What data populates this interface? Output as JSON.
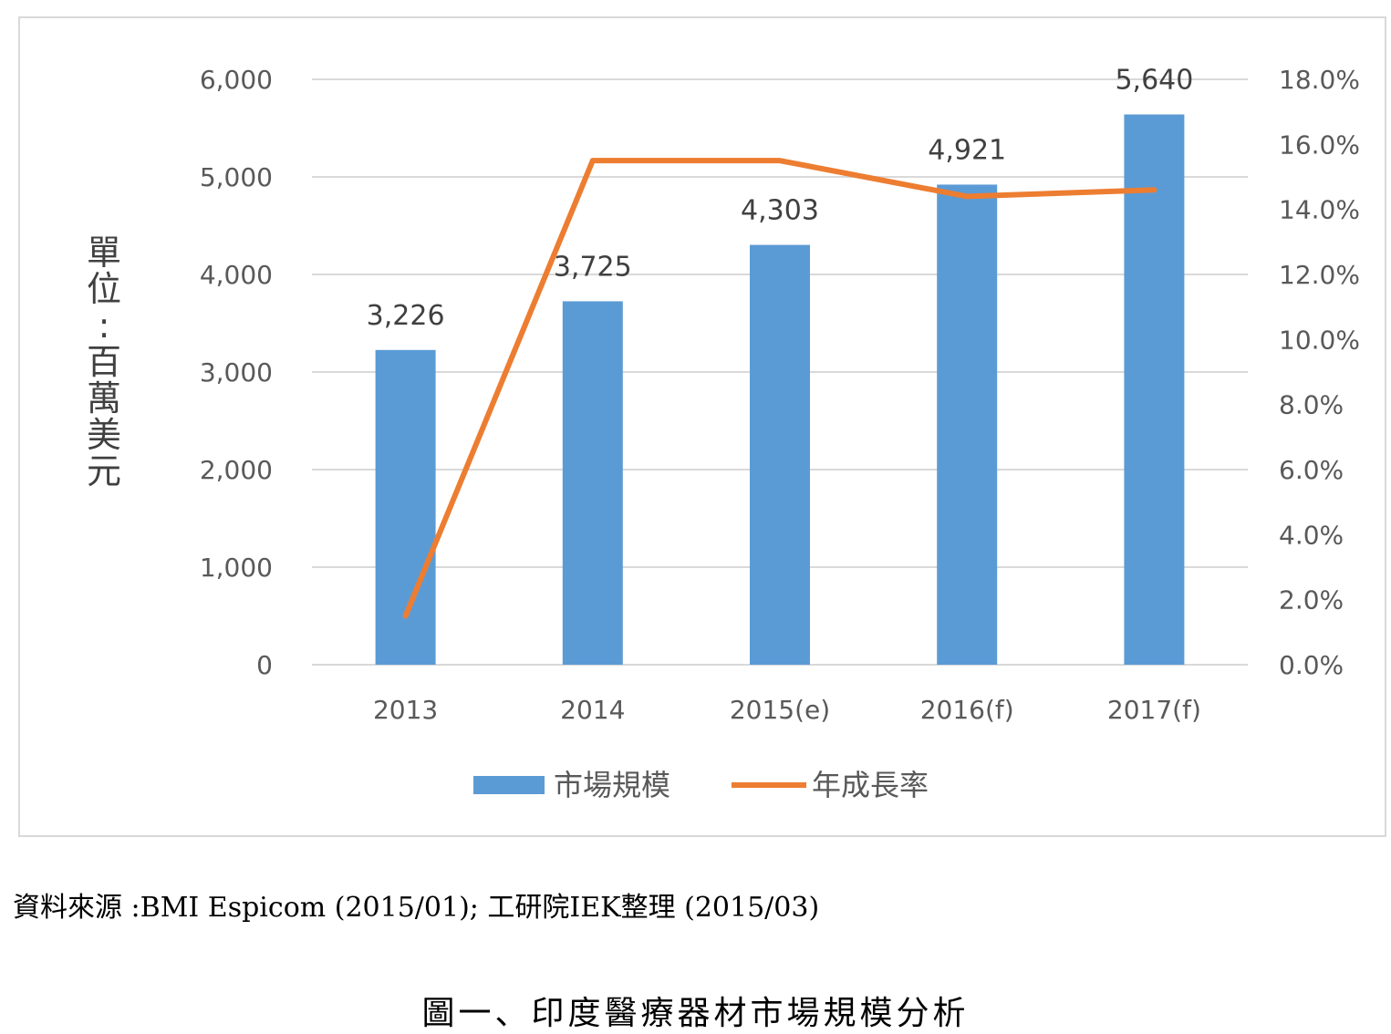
{
  "chart_data": {
    "type": "bar+line",
    "categories": [
      "2013",
      "2014",
      "2015(e)",
      "2016(f)",
      "2017(f)"
    ],
    "series": [
      {
        "name": "市場規模",
        "type": "bar",
        "axis": "left",
        "color": "#5b9bd5",
        "values": [
          3226,
          3725,
          4303,
          4921,
          5640
        ],
        "labels": [
          "3,226",
          "3,725",
          "4,303",
          "4,921",
          "5,640"
        ]
      },
      {
        "name": "年成長率",
        "type": "line",
        "axis": "right",
        "color": "#ed7d31",
        "values": [
          1.5,
          15.5,
          15.5,
          14.4,
          14.6
        ]
      }
    ],
    "ylabel": "單位:百萬美元",
    "left_axis": {
      "ylim": [
        0,
        6000
      ],
      "ticks": [
        0,
        1000,
        2000,
        3000,
        4000,
        5000,
        6000
      ],
      "tick_labels": [
        "0",
        "1,000",
        "2,000",
        "3,000",
        "4,000",
        "5,000",
        "6,000"
      ]
    },
    "right_axis": {
      "ylim": [
        0,
        18
      ],
      "ticks": [
        0,
        2,
        4,
        6,
        8,
        10,
        12,
        14,
        16,
        18
      ],
      "tick_labels": [
        "0.0%",
        "2.0%",
        "4.0%",
        "6.0%",
        "8.0%",
        "10.0%",
        "12.0%",
        "14.0%",
        "16.0%",
        "18.0%"
      ]
    },
    "grid": true,
    "legend": "bottom"
  },
  "source_note": "資料來源 :BMI Espicom (2015/01); 工研院IEK整理 (2015/03)",
  "caption": "圖一、印度醫療器材市場規模分析"
}
